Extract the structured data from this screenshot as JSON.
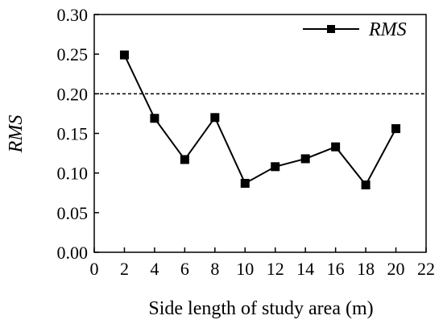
{
  "chart_data": {
    "type": "line",
    "xlabel": "Side length of study area (m)",
    "ylabel": "RMS",
    "xlim": [
      0,
      22
    ],
    "ylim": [
      0,
      0.3
    ],
    "xticks": [
      "0",
      "2",
      "4",
      "6",
      "8",
      "10",
      "12",
      "14",
      "16",
      "18",
      "20",
      "22"
    ],
    "yticks": [
      "0.00",
      "0.05",
      "0.10",
      "0.15",
      "0.20",
      "0.25",
      "0.30"
    ],
    "series": [
      {
        "name": "RMS",
        "x": [
          2,
          4,
          6,
          8,
          10,
          12,
          14,
          16,
          18,
          20
        ],
        "y": [
          0.249,
          0.169,
          0.117,
          0.17,
          0.087,
          0.108,
          0.118,
          0.133,
          0.085,
          0.156
        ],
        "marker": "square",
        "color": "#000000"
      }
    ],
    "reference_line": {
      "y": 0.2,
      "style": "dashed"
    },
    "legend": {
      "position": "top-right",
      "entries": [
        "RMS"
      ]
    },
    "grid": false
  }
}
